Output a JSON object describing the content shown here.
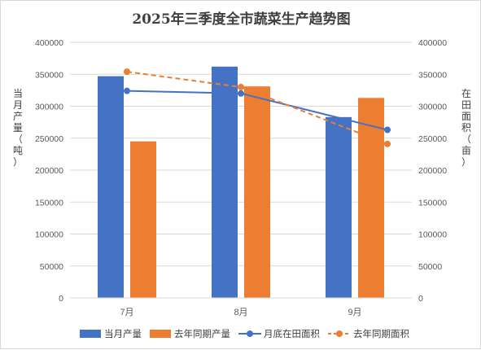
{
  "chart_data": {
    "type": "bar",
    "title": "2025年三季度全市蔬菜生产趋势图",
    "categories": [
      "7月",
      "8月",
      "9月"
    ],
    "y_left": {
      "label_chars": [
        "当",
        "月",
        "产",
        "量",
        "（",
        "吨",
        "）"
      ],
      "ylim": [
        0,
        400000
      ],
      "ticks": [
        "0",
        "50000",
        "100000",
        "150000",
        "200000",
        "250000",
        "300000",
        "350000",
        "400000"
      ]
    },
    "y_right": {
      "label_chars": [
        "在",
        "田",
        "面",
        "积",
        "（",
        "亩",
        "）"
      ],
      "ylim": [
        0,
        400000
      ],
      "ticks": [
        "0",
        "50000",
        "100000",
        "150000",
        "200000",
        "250000",
        "300000",
        "350000",
        "400000"
      ]
    },
    "series": [
      {
        "name": "当月产量",
        "kind": "bar",
        "axis": "left",
        "color": "#4472C4",
        "values": [
          347000,
          362000,
          283000
        ]
      },
      {
        "name": "去年同期产量",
        "kind": "bar",
        "axis": "left",
        "color": "#ED7D31",
        "values": [
          245000,
          331000,
          313000
        ]
      },
      {
        "name": "月底在田面积",
        "kind": "line",
        "axis": "right",
        "color": "#4472C4",
        "dashed": false,
        "values": [
          324000,
          320000,
          263000
        ]
      },
      {
        "name": "去年同期面积",
        "kind": "line",
        "axis": "right",
        "color": "#ED7D31",
        "dashed": true,
        "values": [
          354000,
          330000,
          241000
        ]
      }
    ],
    "grid": true,
    "legend_position": "bottom"
  }
}
